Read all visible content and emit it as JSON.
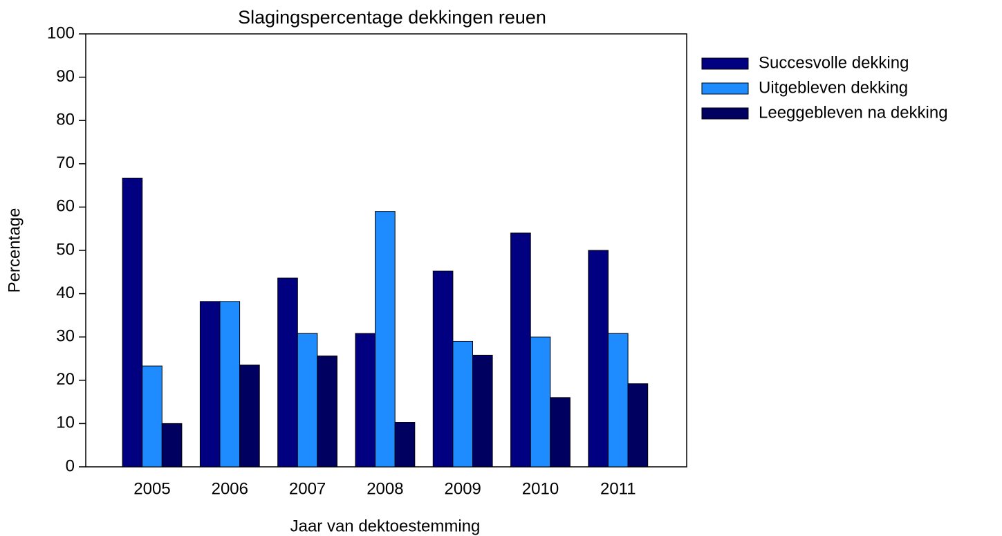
{
  "chart_data": {
    "type": "bar",
    "title": "Slagingspercentage dekkingen reuen",
    "x_label": "Jaar van dektoestemming",
    "y_label": "Percentage",
    "categories": [
      "2005",
      "2006",
      "2007",
      "2008",
      "2009",
      "2010",
      "2011"
    ],
    "series": [
      {
        "name": "Succesvolle dekking",
        "color": "#000080",
        "values": [
          66.7,
          38.2,
          43.6,
          30.8,
          45.2,
          54,
          50
        ]
      },
      {
        "name": "Uitgebleven dekking",
        "color": "#1e8cff",
        "values": [
          23.3,
          38.2,
          30.8,
          59,
          29,
          30,
          30.8
        ]
      },
      {
        "name": "Leeggebleven na dekking",
        "color": "#000060",
        "values": [
          10,
          23.5,
          25.6,
          10.3,
          25.8,
          16,
          19.2
        ]
      }
    ],
    "ylim": [
      0,
      100
    ],
    "yticks": [
      0,
      10,
      20,
      30,
      40,
      50,
      60,
      70,
      80,
      90,
      100
    ],
    "legend": "right"
  }
}
